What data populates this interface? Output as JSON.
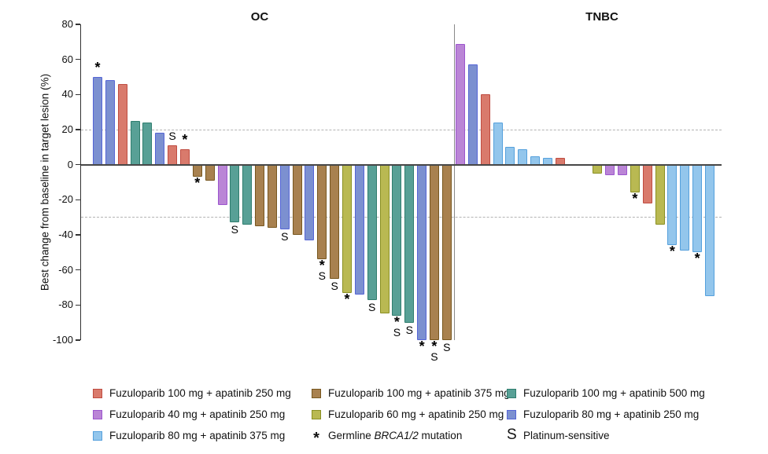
{
  "chart_data": {
    "type": "bar",
    "subtype": "waterfall",
    "ylabel": "Best change from baseline in target lesion (%)",
    "ylim": [
      -100,
      80
    ],
    "yticks": [
      80,
      60,
      40,
      20,
      0,
      -20,
      -40,
      -60,
      -80,
      -100
    ],
    "reference_lines": [
      20,
      -30
    ],
    "grid": false,
    "legend_position": "bottom",
    "groups": {
      "f100a250": {
        "label": "Fuzuloparib 100 mg + apatinib 250 mg",
        "fill": "#D97A6C",
        "stroke": "#BF4C41"
      },
      "f40a250": {
        "label": "Fuzuloparib 40 mg + apatinib 250 mg",
        "fill": "#BA85D6",
        "stroke": "#9C55CE"
      },
      "f80a375": {
        "label": "Fuzuloparib 80 mg + apatinib 375 mg",
        "fill": "#93C6EC",
        "stroke": "#55A0DC"
      },
      "f100a375": {
        "label": "Fuzuloparib 100 mg + apatinib 375 mg",
        "fill": "#A8814F",
        "stroke": "#77571F"
      },
      "f60a250": {
        "label": "Fuzuloparib 60 mg + apatinib 250 mg",
        "fill": "#B9B952",
        "stroke": "#8A9023"
      },
      "f100a500": {
        "label": "Fuzuloparib 100 mg + apatinib 500 mg",
        "fill": "#58A096",
        "stroke": "#2F7D6E"
      },
      "f80a250": {
        "label": "Fuzuloparib 80 mg + apatinib 250 mg",
        "fill": "#7C90D0",
        "stroke": "#5565D6"
      }
    },
    "marker_meanings": {
      "*": "Germline BRCA1/2 mutation",
      "S": "Platinum-sensitive"
    },
    "panels": [
      {
        "title": "OC",
        "bars": [
          {
            "value": 50,
            "group": "f80a250",
            "mark": "*"
          },
          {
            "value": 48,
            "group": "f80a250"
          },
          {
            "value": 46,
            "group": "f100a250"
          },
          {
            "value": 25,
            "group": "f100a500"
          },
          {
            "value": 24,
            "group": "f100a500"
          },
          {
            "value": 18,
            "group": "f80a250"
          },
          {
            "value": 11,
            "group": "f100a250",
            "mark": "S"
          },
          {
            "value": 9,
            "group": "f100a250",
            "mark": "*"
          },
          {
            "value": -7,
            "group": "f100a375",
            "mark": "*"
          },
          {
            "value": -9,
            "group": "f100a375"
          },
          {
            "value": -23,
            "group": "f40a250"
          },
          {
            "value": -33,
            "group": "f100a500",
            "mark": "S"
          },
          {
            "value": -34,
            "group": "f100a500"
          },
          {
            "value": -35,
            "group": "f100a375"
          },
          {
            "value": -36,
            "group": "f100a375"
          },
          {
            "value": -37,
            "group": "f80a250",
            "mark": "S"
          },
          {
            "value": -40,
            "group": "f100a375"
          },
          {
            "value": -43,
            "group": "f80a250"
          },
          {
            "value": -54,
            "group": "f100a375",
            "mark": "*S"
          },
          {
            "value": -65,
            "group": "f100a375",
            "mark": "S"
          },
          {
            "value": -73,
            "group": "f60a250",
            "mark": "*"
          },
          {
            "value": -74,
            "group": "f80a250"
          },
          {
            "value": -77,
            "group": "f100a500",
            "mark": "S"
          },
          {
            "value": -85,
            "group": "f60a250"
          },
          {
            "value": -86,
            "group": "f100a500",
            "mark": "*S"
          },
          {
            "value": -90,
            "group": "f100a500",
            "mark": "S"
          },
          {
            "value": -100,
            "group": "f80a250",
            "mark": "*"
          },
          {
            "value": -100,
            "group": "f100a375",
            "mark": "*S"
          },
          {
            "value": -100,
            "group": "f100a375",
            "mark": "S"
          }
        ]
      },
      {
        "title": "TNBC",
        "bars": [
          {
            "value": 69,
            "group": "f40a250"
          },
          {
            "value": 57,
            "group": "f80a250"
          },
          {
            "value": 40,
            "group": "f100a250"
          },
          {
            "value": 24,
            "group": "f80a375"
          },
          {
            "value": 10,
            "group": "f80a375"
          },
          {
            "value": 9,
            "group": "f80a375"
          },
          {
            "value": 5,
            "group": "f80a375"
          },
          {
            "value": 4,
            "group": "f80a375"
          },
          {
            "value": 4,
            "group": "f100a250"
          },
          {
            "value": 0,
            "group": null
          },
          {
            "value": 0,
            "group": null
          },
          {
            "value": -5,
            "group": "f60a250"
          },
          {
            "value": -6,
            "group": "f40a250"
          },
          {
            "value": -6,
            "group": "f40a250"
          },
          {
            "value": -16,
            "group": "f60a250",
            "mark": "*"
          },
          {
            "value": -22,
            "group": "f100a250"
          },
          {
            "value": -34,
            "group": "f60a250"
          },
          {
            "value": -46,
            "group": "f80a375",
            "mark": "*"
          },
          {
            "value": -49,
            "group": "f80a375"
          },
          {
            "value": -50,
            "group": "f80a375",
            "mark": "*"
          },
          {
            "value": -75,
            "group": "f80a375"
          }
        ]
      }
    ]
  },
  "legend": {
    "columns": [
      {
        "items": [
          {
            "type": "swatch",
            "group": "f100a250"
          },
          {
            "type": "swatch",
            "group": "f40a250"
          },
          {
            "type": "swatch",
            "group": "f80a375"
          }
        ]
      },
      {
        "items": [
          {
            "type": "swatch",
            "group": "f100a375"
          },
          {
            "type": "swatch",
            "group": "f60a250"
          },
          {
            "type": "symbol",
            "symbol": "*",
            "label_parts": {
              "prefix": "Germline ",
              "italic": "BRCA1/2",
              "suffix": " mutation"
            }
          }
        ]
      },
      {
        "items": [
          {
            "type": "swatch",
            "group": "f100a500"
          },
          {
            "type": "swatch",
            "group": "f80a250"
          },
          {
            "type": "symbol",
            "symbol": "S",
            "label": "Platinum-sensitive"
          }
        ]
      }
    ]
  }
}
